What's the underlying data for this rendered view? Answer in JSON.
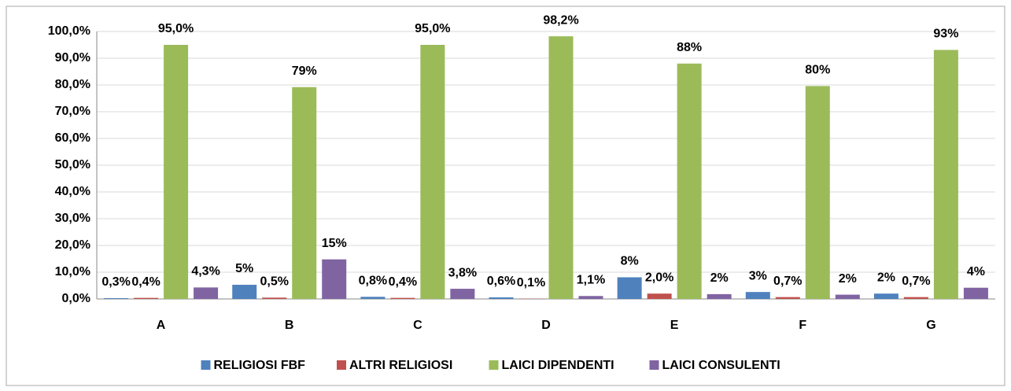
{
  "chart_data": {
    "type": "bar",
    "categories": [
      "A",
      "B",
      "C",
      "D",
      "E",
      "F",
      "G"
    ],
    "series": [
      {
        "name": "RELIGIOSI FBF",
        "color": "#4f81bd",
        "values": [
          0.3,
          5.3,
          0.8,
          0.6,
          8.1,
          2.6,
          2.0
        ],
        "value_labels": [
          "0,3%",
          "5%",
          "0,8%",
          "0,6%",
          "8%",
          "3%",
          "2%"
        ]
      },
      {
        "name": "ALTRI RELIGIOSI",
        "color": "#c0504d",
        "values": [
          0.4,
          0.5,
          0.4,
          0.1,
          2.0,
          0.7,
          0.7
        ],
        "value_labels": [
          "0,4%",
          "0,5%",
          "0,4%",
          "0,1%",
          "2,0%",
          "0,7%",
          "0,7%"
        ]
      },
      {
        "name": "LAICI DIPENDENTI",
        "color": "#9bbb59",
        "values": [
          95.0,
          79.2,
          95.0,
          98.2,
          88.0,
          79.6,
          93.1
        ],
        "value_labels": [
          "95,0%",
          "79%",
          "95,0%",
          "98,2%",
          "88%",
          "80%",
          "93%"
        ]
      },
      {
        "name": "LAICI CONSULENTI",
        "color": "#8064a2",
        "values": [
          4.3,
          14.8,
          3.8,
          1.1,
          1.8,
          1.6,
          4.2
        ],
        "value_labels": [
          "4,3%",
          "15%",
          "3,8%",
          "1,1%",
          "2%",
          "2%",
          "4%"
        ]
      }
    ],
    "ylim": [
      0,
      100
    ],
    "yticks": [
      {
        "value": 0,
        "label": "0,0%"
      },
      {
        "value": 10,
        "label": "10,0%"
      },
      {
        "value": 20,
        "label": "20,0%"
      },
      {
        "value": 30,
        "label": "30,0%"
      },
      {
        "value": 40,
        "label": "40,0%"
      },
      {
        "value": 50,
        "label": "50,0%"
      },
      {
        "value": 60,
        "label": "60,0%"
      },
      {
        "value": 70,
        "label": "70,0%"
      },
      {
        "value": 80,
        "label": "80,0%"
      },
      {
        "value": 90,
        "label": "90,0%"
      },
      {
        "value": 100,
        "label": "100,0%"
      }
    ],
    "grid": true,
    "legend": "bottom"
  }
}
